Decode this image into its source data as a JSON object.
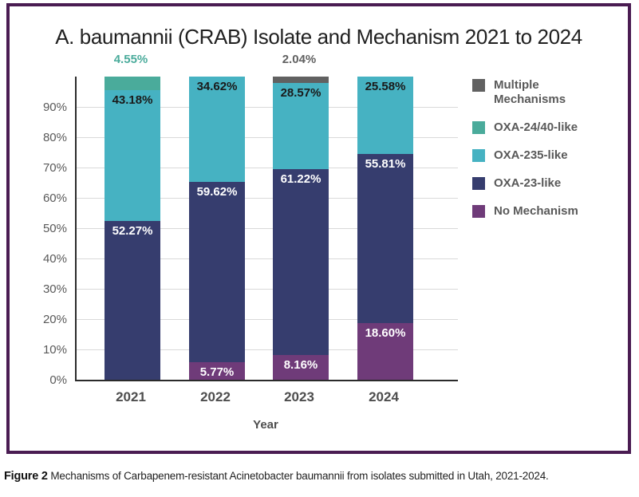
{
  "figure": {
    "caption_label": "Figure 2",
    "caption_text": "Mechanisms of Carbapenem-resistant Acinetobacter baumannii from isolates submitted in Utah, 2021-2024.",
    "panel_border_color": "#4a1c52"
  },
  "chart_data": {
    "type": "bar",
    "stacked": true,
    "title": "A. baumannii (CRAB) Isolate and Mechanism 2021 to 2024",
    "xlabel": "Year",
    "ylabel": "",
    "categories": [
      "2021",
      "2022",
      "2023",
      "2024"
    ],
    "series": [
      {
        "name": "No Mechanism",
        "color": "#6f3b79",
        "label_text_color": "#ffffff",
        "values": [
          0,
          5.77,
          8.16,
          18.6
        ]
      },
      {
        "name": "OXA-23-like",
        "color": "#363d6e",
        "label_text_color": "#ffffff",
        "values": [
          52.27,
          59.62,
          61.22,
          55.81
        ]
      },
      {
        "name": "OXA-235-like",
        "color": "#46b2c2",
        "label_text_color": "#1a1a1a",
        "values": [
          43.18,
          34.62,
          28.57,
          25.58
        ]
      },
      {
        "name": "OXA-24/40-like",
        "color": "#4aab9b",
        "label_text_color": "#1a1a1a",
        "values": [
          4.55,
          0,
          0,
          0
        ]
      },
      {
        "name": "Multiple Mechanisms",
        "color": "#616161",
        "label_text_color": "#1a1a1a",
        "values": [
          0,
          0,
          2.04,
          0
        ]
      }
    ],
    "value_label_format": "0.00%",
    "outside_label_threshold": 5,
    "ylim": [
      0,
      100
    ],
    "ytick_labels": [
      "0%",
      "10%",
      "20%",
      "30%",
      "40%",
      "50%",
      "60%",
      "70%",
      "80%",
      "90%"
    ],
    "grid": true,
    "gridline_color": "#d9d9d9",
    "axis_line_color": "#2b2b2b",
    "legend": {
      "position": "right",
      "items_top_to_bottom": [
        "Multiple Mechanisms",
        "OXA-24/40-like",
        "OXA-235-like",
        "OXA-23-like",
        "No Mechanism"
      ]
    }
  }
}
